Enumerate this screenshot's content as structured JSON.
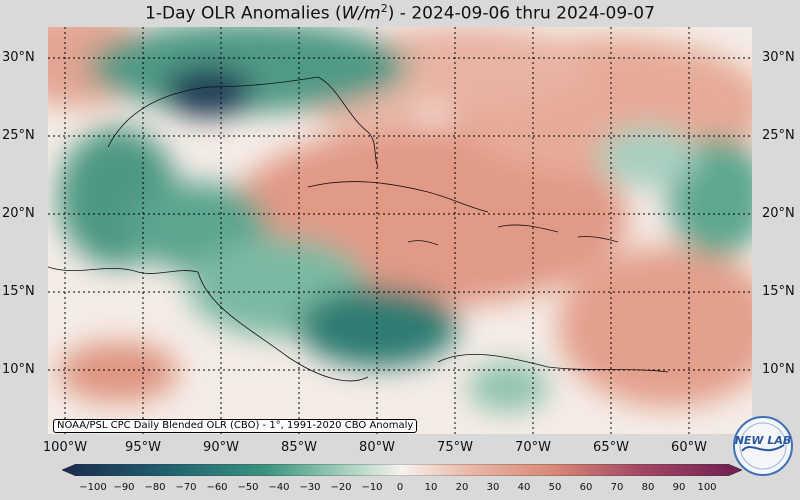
{
  "title": {
    "prefix": "1-Day OLR Anomalies (",
    "units_base": "W/m",
    "units_exp": "2",
    "suffix": ") - 2024-09-06 thru 2024-09-07"
  },
  "lat_labels": [
    "30°N",
    "25°N",
    "20°N",
    "15°N",
    "10°N"
  ],
  "lon_labels": [
    "100°W",
    "95°W",
    "90°W",
    "85°W",
    "80°W",
    "75°W",
    "70°W",
    "65°W",
    "60°W"
  ],
  "source_note": "NOAA/PSL CPC Daily Blended OLR (CBO) - 1°, 1991-2020 CBO Anomaly",
  "colorbar_ticks": [
    "−100",
    "−90",
    "−80",
    "−70",
    "−60",
    "−50",
    "−40",
    "−30",
    "−20",
    "−10",
    "0",
    "10",
    "20",
    "30",
    "40",
    "50",
    "60",
    "70",
    "80",
    "90",
    "100"
  ],
  "logo_text": "NEW LAB",
  "colors": {
    "negative_strong": "#1b2a4e",
    "negative_mid": "#1f7a6e",
    "neutral": "#f7f2ee",
    "positive_mid": "#d88a76",
    "positive_strong": "#6e1e50"
  }
}
